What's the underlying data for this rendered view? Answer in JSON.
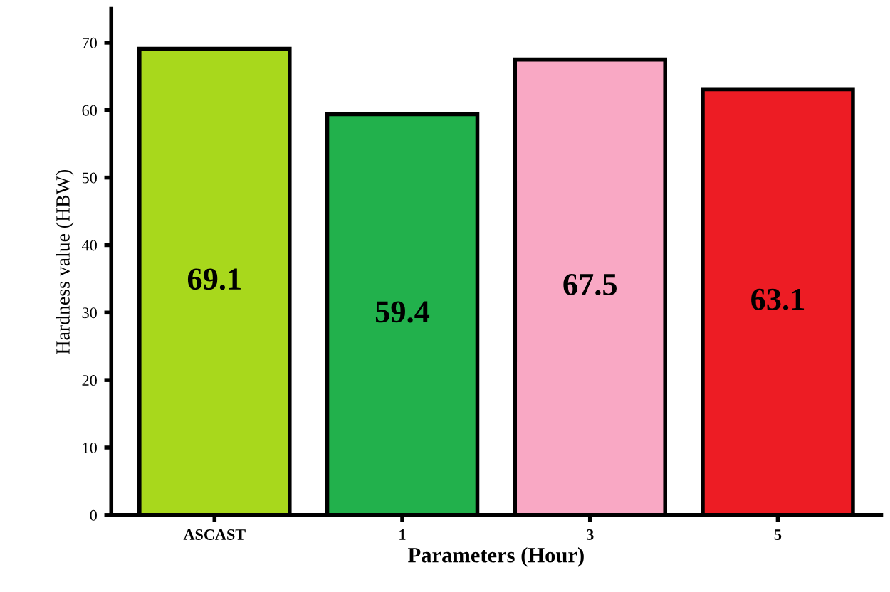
{
  "chart_data": {
    "type": "bar",
    "xlabel": "Parameters (Hour)",
    "ylabel": "Hardness value (HBW)",
    "categories": [
      "ASCAST",
      "1",
      "3",
      "5"
    ],
    "values": [
      69.1,
      59.4,
      67.5,
      63.1
    ],
    "colors": [
      "#a8d81c",
      "#22b14c",
      "#f9a8c4",
      "#ed1c24"
    ],
    "ylim": [
      0,
      75
    ],
    "yticks": [
      0,
      10,
      20,
      30,
      40,
      50,
      60,
      70
    ],
    "data_labels": true,
    "grid": false,
    "legend": false
  }
}
